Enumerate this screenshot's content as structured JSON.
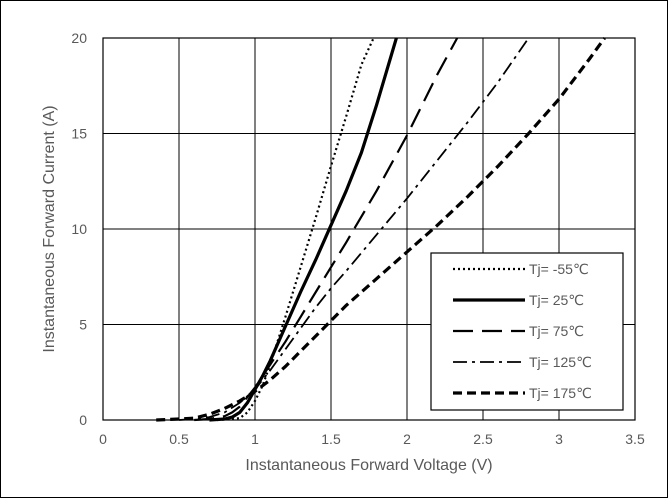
{
  "chart_data": {
    "type": "line",
    "title": "",
    "xlabel": "Instantaneous Forward Voltage (V)",
    "ylabel": "Instantaneous Forward Current (A)",
    "xlim": [
      0,
      3.5
    ],
    "ylim": [
      0,
      20
    ],
    "xticks": [
      0,
      0.5,
      1,
      1.5,
      2,
      2.5,
      3,
      3.5
    ],
    "xtick_labels": [
      "0",
      "0.5",
      "1",
      "1.5",
      "2",
      "2.5",
      "3",
      "3.5"
    ],
    "yticks": [
      0,
      5,
      10,
      15,
      20
    ],
    "ytick_labels": [
      "0",
      "5",
      "10",
      "15",
      "20"
    ],
    "grid": true,
    "legend_position": "bottom-right",
    "series": [
      {
        "name": "Tj= -55℃",
        "dash": "dotted",
        "x": [
          0.75,
          0.85,
          0.9,
          0.95,
          1.0,
          1.05,
          1.1,
          1.2,
          1.3,
          1.4,
          1.5,
          1.6,
          1.7,
          1.78
        ],
        "y": [
          0,
          0.05,
          0.1,
          0.4,
          1.0,
          1.8,
          2.9,
          5.4,
          8.0,
          10.6,
          13.3,
          15.9,
          18.6,
          20.0
        ]
      },
      {
        "name": "Tj= 25℃",
        "dash": "solid",
        "x": [
          0.7,
          0.8,
          0.85,
          0.9,
          0.95,
          1.0,
          1.05,
          1.1,
          1.2,
          1.3,
          1.4,
          1.5,
          1.6,
          1.7,
          1.8,
          1.93
        ],
        "y": [
          0,
          0.05,
          0.15,
          0.4,
          0.9,
          1.6,
          2.3,
          3.1,
          4.9,
          6.7,
          8.4,
          10.2,
          12.0,
          14.0,
          16.5,
          20.0
        ]
      },
      {
        "name": "Tj= 75℃",
        "dash": "long-dash",
        "x": [
          0.6,
          0.7,
          0.8,
          0.85,
          0.9,
          0.95,
          1.0,
          1.1,
          1.2,
          1.3,
          1.4,
          1.5,
          1.6,
          1.8,
          2.0,
          2.2,
          2.33
        ],
        "y": [
          0,
          0.05,
          0.2,
          0.4,
          0.7,
          1.2,
          1.7,
          2.9,
          4.1,
          5.4,
          6.7,
          8.0,
          9.3,
          12.0,
          14.9,
          18.1,
          20.0
        ]
      },
      {
        "name": "Tj= 125℃",
        "dash": "dash-dot",
        "x": [
          0.5,
          0.6,
          0.7,
          0.8,
          0.9,
          1.0,
          1.1,
          1.2,
          1.3,
          1.4,
          1.5,
          1.6,
          1.8,
          2.0,
          2.2,
          2.4,
          2.6,
          2.8
        ],
        "y": [
          0,
          0.05,
          0.15,
          0.4,
          0.9,
          1.6,
          2.6,
          3.7,
          4.8,
          5.9,
          6.9,
          7.8,
          9.7,
          11.6,
          13.6,
          15.6,
          17.7,
          20.0
        ]
      },
      {
        "name": "Tj= 175℃",
        "dash": "short-dash",
        "x": [
          0.35,
          0.5,
          0.6,
          0.7,
          0.8,
          0.9,
          1.0,
          1.1,
          1.2,
          1.3,
          1.4,
          1.5,
          1.6,
          1.8,
          2.0,
          2.2,
          2.4,
          2.6,
          2.8,
          3.0,
          3.2,
          3.3
        ],
        "y": [
          0,
          0.05,
          0.1,
          0.3,
          0.6,
          1.0,
          1.5,
          2.1,
          2.8,
          3.6,
          4.4,
          5.2,
          6.0,
          7.4,
          8.8,
          10.2,
          11.7,
          13.3,
          15.0,
          16.8,
          18.9,
          20.0
        ]
      }
    ]
  }
}
